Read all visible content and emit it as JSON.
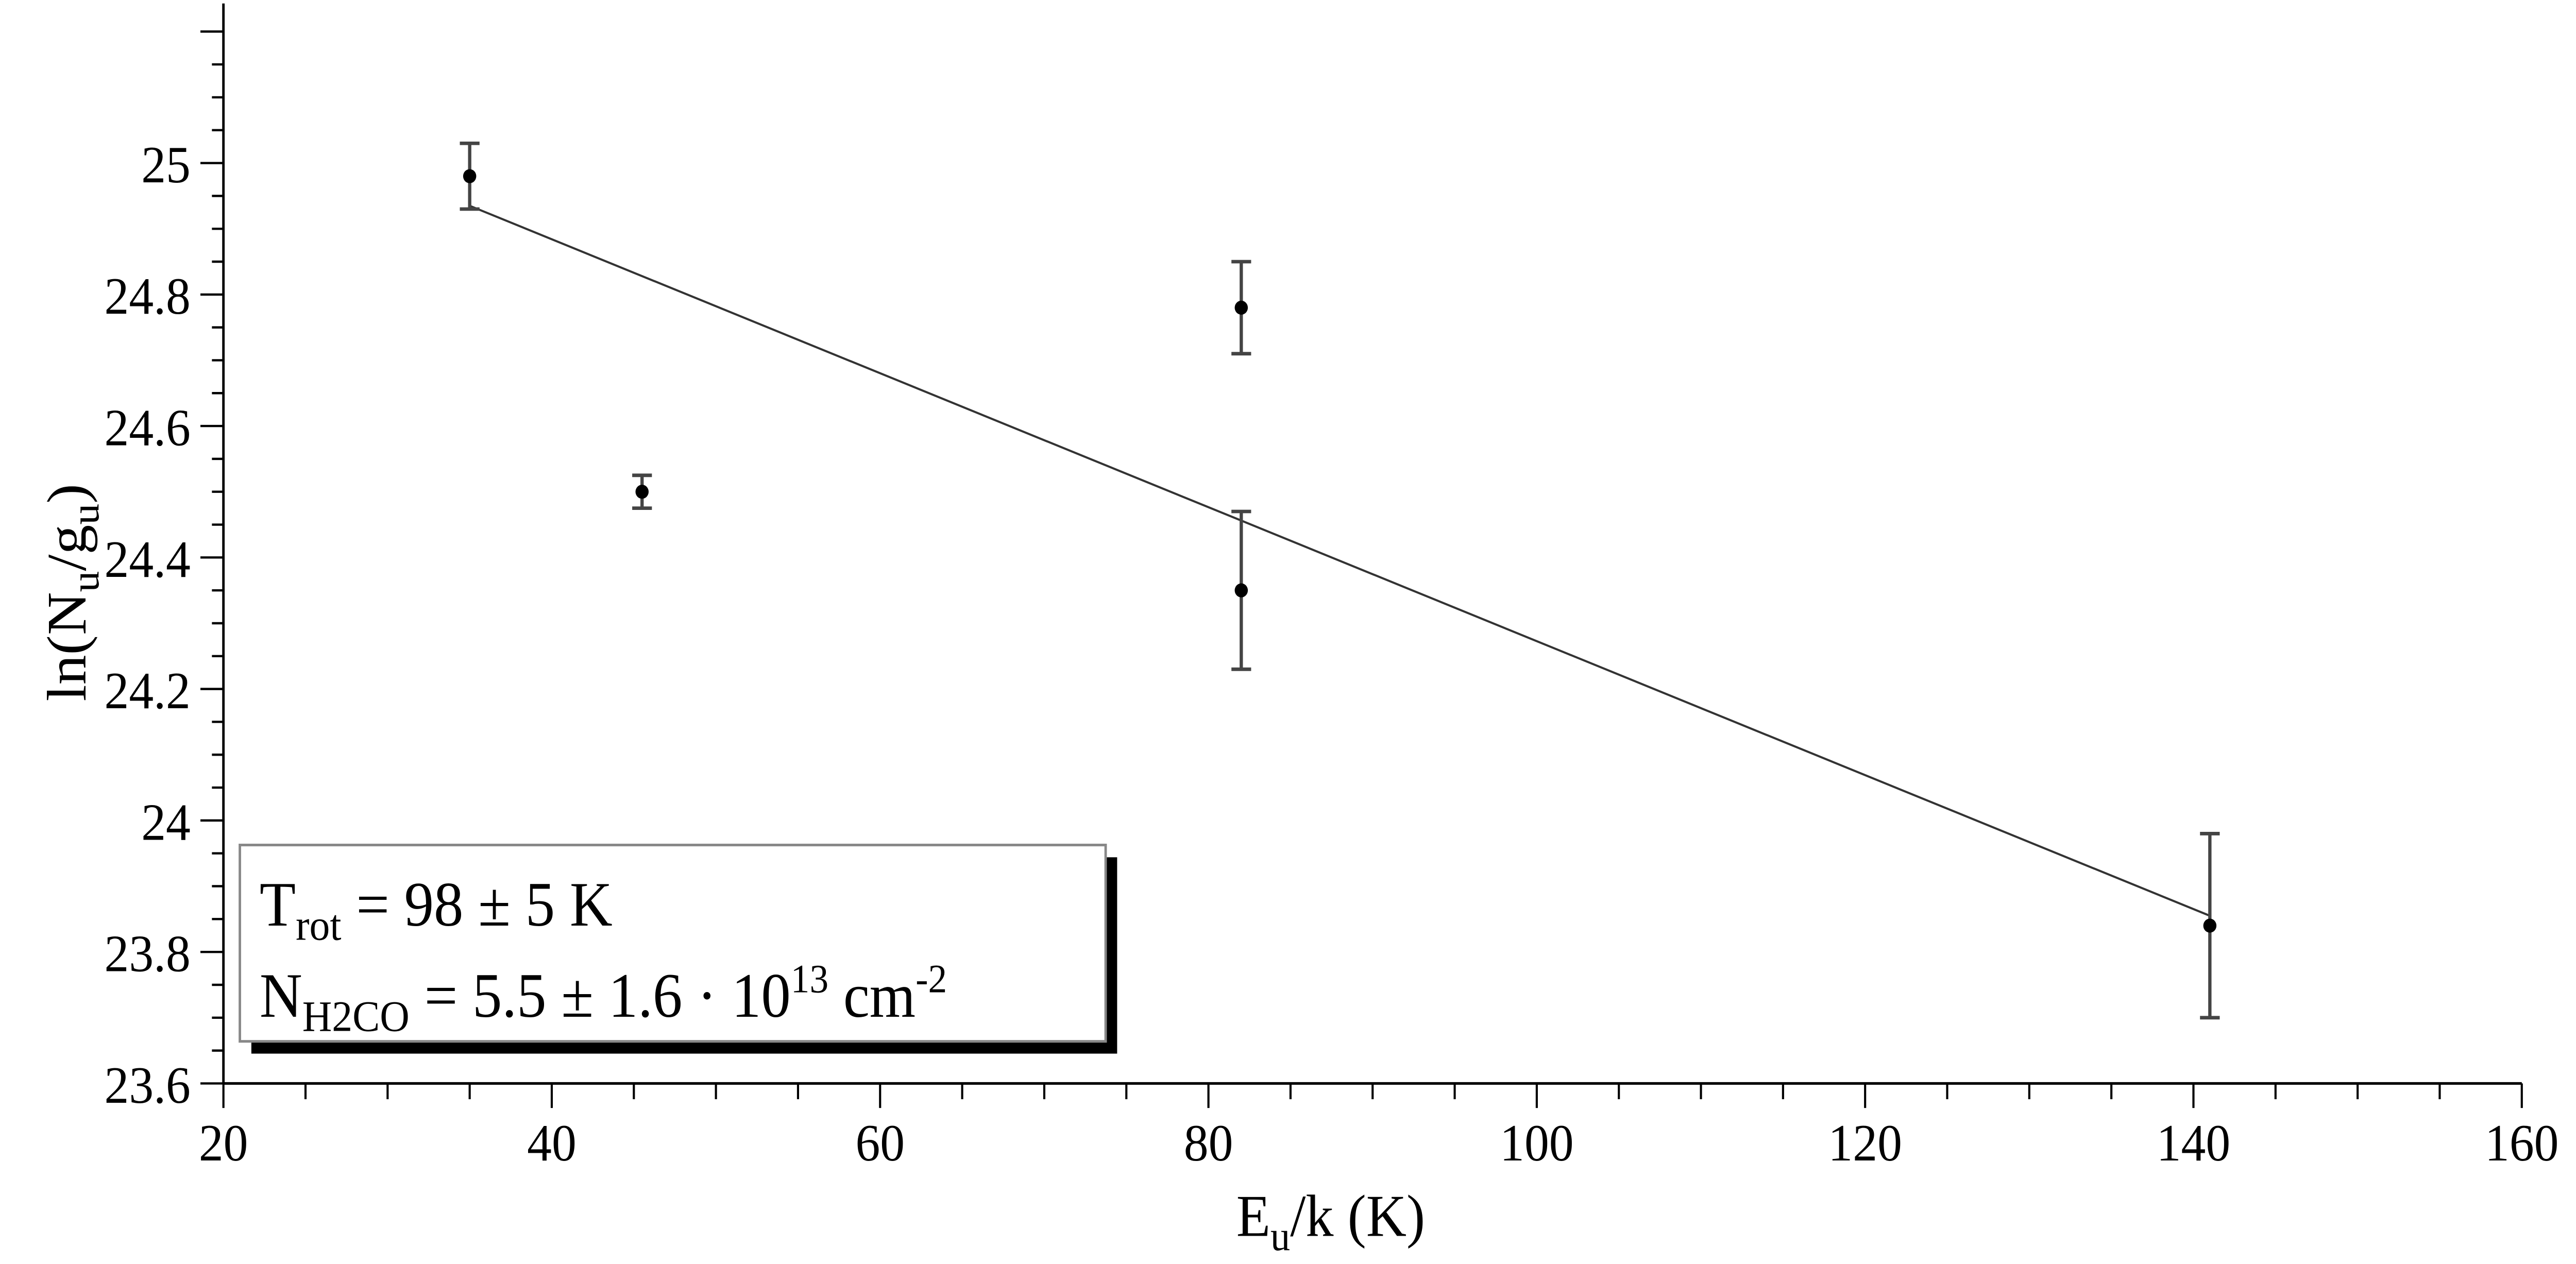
{
  "chart_data": {
    "type": "scatter",
    "xlabel": {
      "main": "E",
      "sub": "u",
      "rest": "/k (K)"
    },
    "ylabel": {
      "pre": "ln(N",
      "sub1": "u",
      "mid": "/g",
      "sub2": "u",
      "post": ")"
    },
    "xlim": [
      20,
      160
    ],
    "ylim": [
      23.6,
      25.25
    ],
    "x_ticks": [
      20,
      40,
      60,
      80,
      100,
      120,
      140,
      160
    ],
    "y_ticks": [
      23.6,
      23.8,
      24,
      24.2,
      24.4,
      24.6,
      24.8,
      25
    ],
    "x_tick_labels": [
      "20",
      "40",
      "60",
      "80",
      "100",
      "120",
      "140",
      "160"
    ],
    "y_tick_labels": [
      "23.6",
      "23.8",
      "24",
      "24.2",
      "24.4",
      "24.6",
      "24.8",
      "25"
    ],
    "grid": false,
    "points": [
      {
        "x": 35,
        "y": 24.98,
        "err": 0.05
      },
      {
        "x": 45.5,
        "y": 24.5,
        "err": 0.025
      },
      {
        "x": 82,
        "y": 24.78,
        "err": 0.07
      },
      {
        "x": 82,
        "y": 24.35,
        "err": 0.12
      },
      {
        "x": 141,
        "y": 23.84,
        "err": 0.14
      }
    ],
    "fit_line": {
      "x": [
        35,
        141
      ],
      "y": [
        24.935,
        23.855
      ]
    },
    "annotation": {
      "line1": {
        "pre": "T",
        "sub": "rot",
        "post": " = 98 ± 5 K"
      },
      "line2": {
        "pre": "N",
        "sub": "H2CO",
        "mid": " = 5.5 ± 1.6 · 10",
        "sup1": "13",
        "unit": " cm",
        "sup2": "-2"
      },
      "placement": "bottom-left"
    },
    "colors": {
      "points": "#000000",
      "errorbars": "#444444",
      "line": "#333333"
    }
  }
}
